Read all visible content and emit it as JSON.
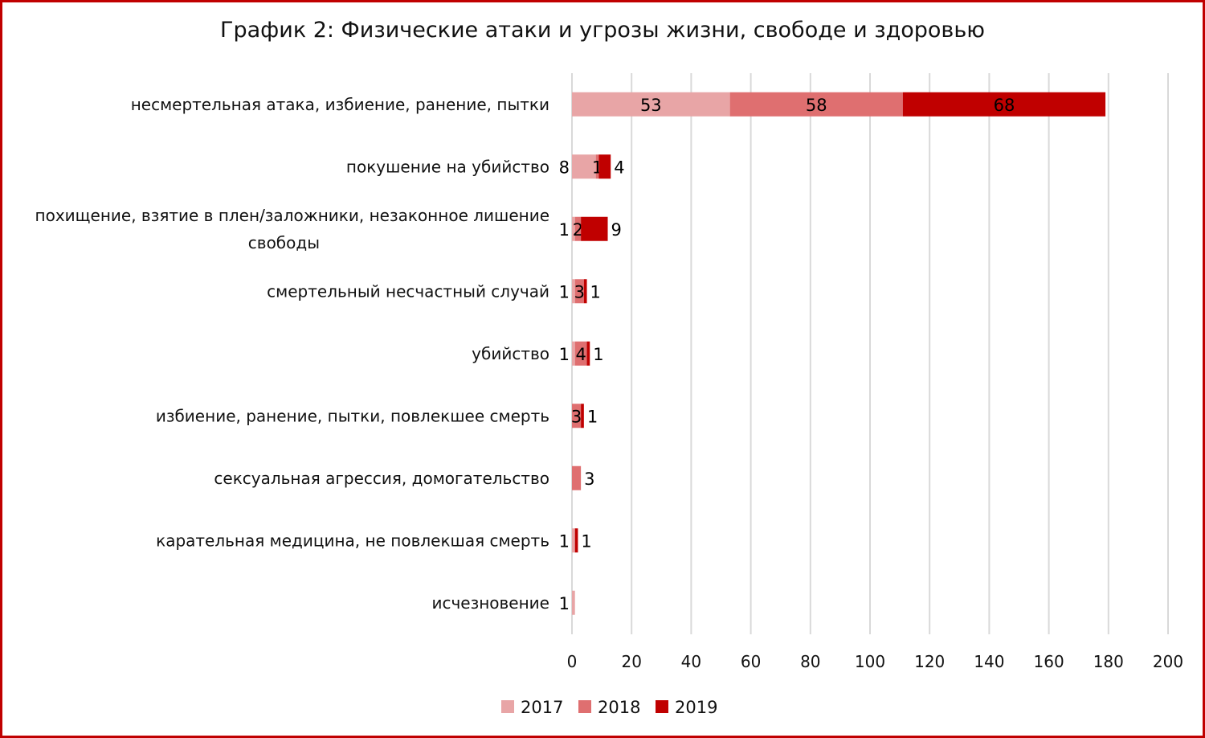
{
  "chart_data": {
    "type": "bar",
    "orientation": "horizontal",
    "stacked": true,
    "title": "График 2: Физические атаки и угрозы жизни, свободе и здоровью",
    "categories": [
      "несмертельная атака, избиение, ранение, пытки",
      "покушение на убийство",
      "похищение, взятие в плен/заложники, незаконное лишение свободы",
      "смертельный несчастный случай",
      "убийство",
      "избиение, ранение, пытки, повлекшее смерть",
      "сексуальная агрессия, домогательство",
      "карательная медицина, не повлекшая смерть",
      "исчезновение"
    ],
    "series": [
      {
        "name": "2017",
        "color": "#e8a5a6",
        "values": [
          53,
          8,
          1,
          1,
          1,
          0,
          0,
          1,
          1
        ]
      },
      {
        "name": "2018",
        "color": "#df6f70",
        "values": [
          58,
          1,
          2,
          3,
          4,
          3,
          3,
          0,
          0
        ]
      },
      {
        "name": "2019",
        "color": "#c00000",
        "values": [
          68,
          4,
          9,
          1,
          1,
          1,
          0,
          1,
          0
        ]
      }
    ],
    "xlim": [
      0,
      200
    ],
    "x_ticks": [
      0,
      20,
      40,
      60,
      80,
      100,
      120,
      140,
      160,
      180,
      200
    ],
    "grid": "vertical",
    "legend_position": "bottom",
    "frame_color": "#c00000"
  }
}
